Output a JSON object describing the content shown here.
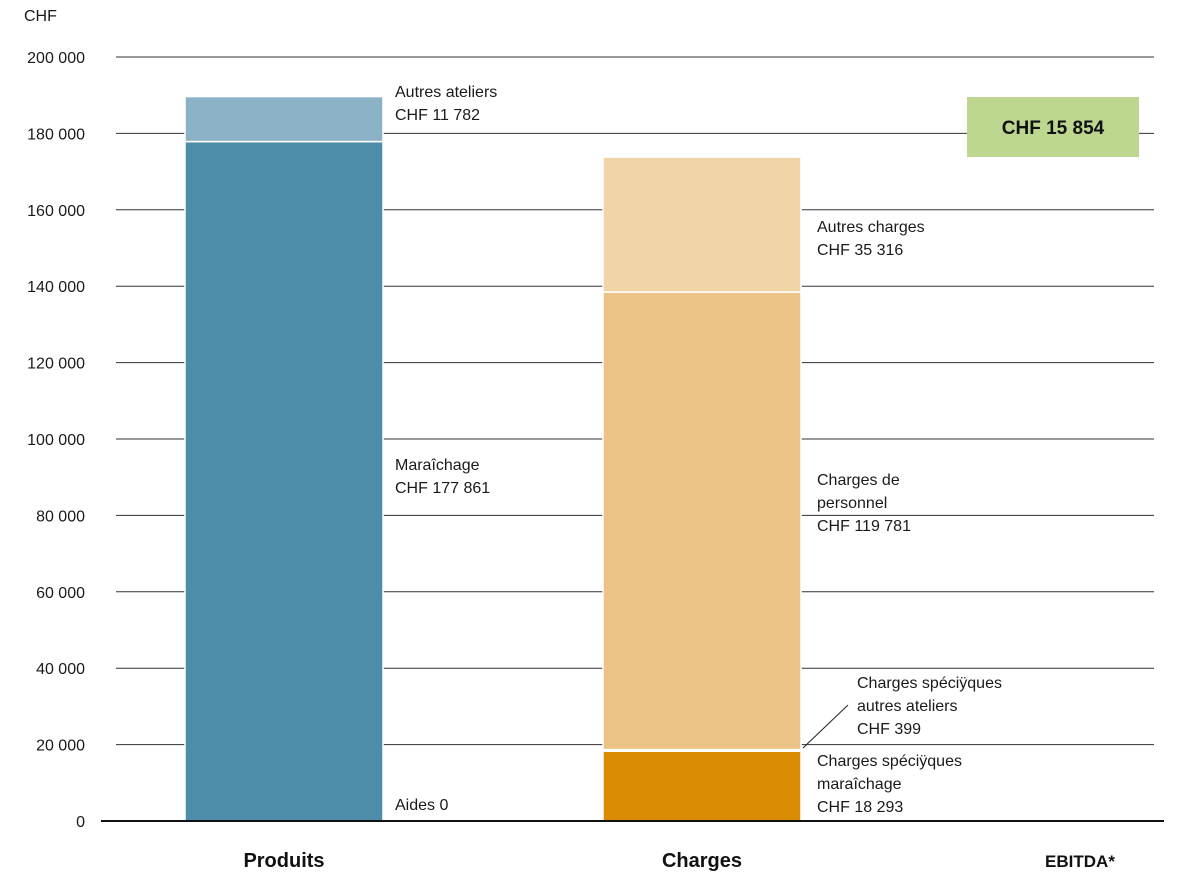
{
  "chart_data": {
    "type": "bar",
    "stacked": true,
    "ylabel": "CHF",
    "ylim": [
      0,
      200000
    ],
    "yticks": [
      0,
      20000,
      40000,
      60000,
      80000,
      100000,
      120000,
      140000,
      160000,
      180000,
      200000
    ],
    "ytick_labels": [
      "0",
      "20 000",
      "40 000",
      "60 000",
      "80 000",
      "100 000",
      "120 000",
      "140 000",
      "160 000",
      "180 000",
      "200 000"
    ],
    "grid": true,
    "categories": [
      "Produits",
      "Charges",
      "EBITDA*"
    ],
    "series": [
      {
        "category": "Produits",
        "segments": [
          {
            "key": "aides",
            "value": 0,
            "color": "#4e8daa",
            "label_lines": [
              "Aides 0"
            ]
          },
          {
            "key": "maraichage",
            "value": 177861,
            "color": "#4e8daa",
            "label_lines": [
              "Maraîchage",
              "CHF 177 861"
            ]
          },
          {
            "key": "autres_ateliers",
            "value": 11782,
            "color": "#8cb2c8",
            "label_lines": [
              "Autres ateliers",
              "CHF 11 782"
            ]
          }
        ]
      },
      {
        "category": "Charges",
        "segments": [
          {
            "key": "charges_specifiques_maraichage",
            "value": 18293,
            "color": "#d98c04",
            "label_lines": [
              "Charges spéciÿques",
              "maraîchage",
              "CHF 18 293"
            ]
          },
          {
            "key": "charges_specifiques_autres_ateliers",
            "value": 399,
            "color": "#e9b86b",
            "label_lines": [
              "Charges spéciÿques",
              "autres ateliers",
              "CHF 399"
            ]
          },
          {
            "key": "charges_de_personnel",
            "value": 119781,
            "color": "#ecc386",
            "label_lines": [
              "Charges de",
              "personnel",
              "CHF 119 781"
            ]
          },
          {
            "key": "autres_charges",
            "value": 35316,
            "color": "#f2d5a7",
            "label_lines": [
              "Autres charges",
              "CHF 35 316"
            ]
          }
        ]
      }
    ],
    "ebitda": {
      "label": "CHF 15 854",
      "value": 15854,
      "color": "#bdd791"
    }
  }
}
